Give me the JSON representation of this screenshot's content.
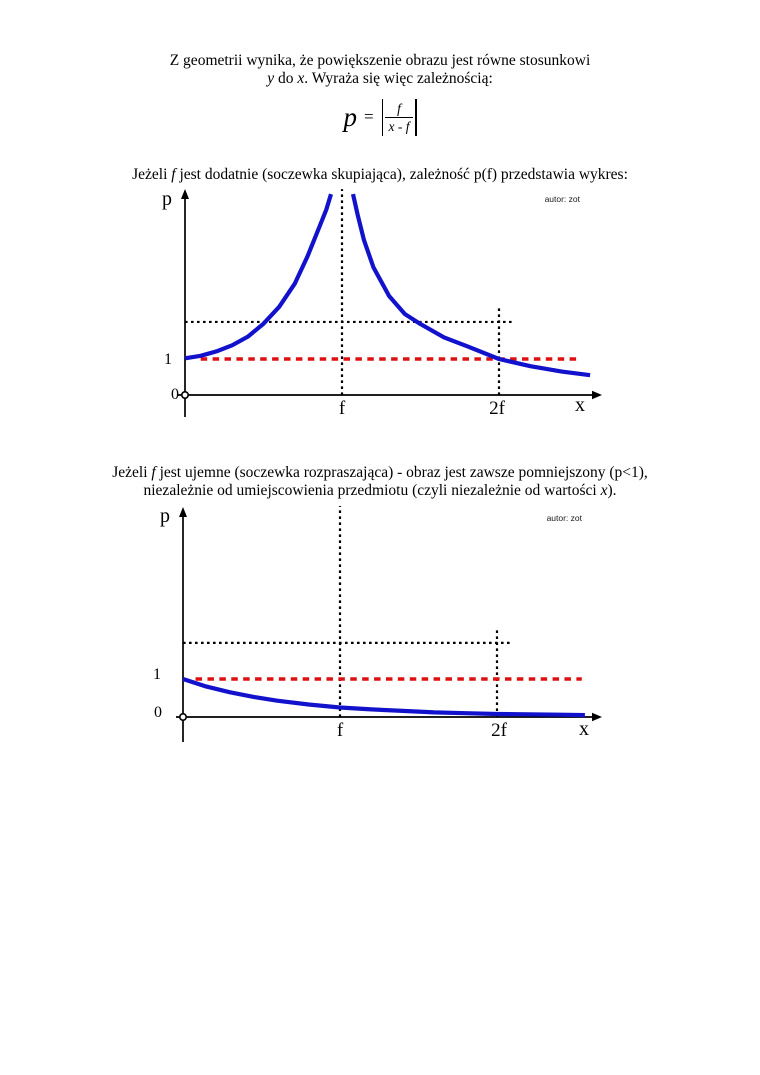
{
  "colors": {
    "curve_blue": "#1212cc",
    "reference_red": "#dd1111",
    "axis_black": "#000000",
    "background": "#ffffff"
  },
  "intro": {
    "line1": "Z geometrii wynika, że powiększenie obrazu jest równe stosunkowi",
    "line2": {
      "em1": "y",
      "mid1": " do ",
      "em2": "x",
      "rest": ". Wyraża się więc zależnością:"
    }
  },
  "formula": {
    "lhs": "p",
    "eq": "=",
    "numerator": "f",
    "denominator": "x - f"
  },
  "section1": {
    "heading": {
      "pre": "Jeżeli ",
      "em": "f",
      "post": " jest dodatnie (soczewka skupiająca), zależność p(f) przedstawia wykres:"
    },
    "credit": "autor: zot"
  },
  "section2": {
    "heading_line1": {
      "pre": "Jeżeli ",
      "em": "f",
      "post": " jest ujemne (soczewka rozpraszająca) - obraz jest zawsze pomniejszony (p<1),"
    },
    "heading_line2": {
      "pre": "niezależnie od umiejscowienia przedmiotu (czyli niezależnie od wartości ",
      "em": "x",
      "post": ")."
    },
    "credit": "autor: zot"
  },
  "chart_data": [
    {
      "type": "line",
      "xlabel": "x",
      "ylabel": "p",
      "origin_label": "0",
      "x_ticks": [
        {
          "value": 1,
          "label": "f"
        },
        {
          "value": 2,
          "label": "2f"
        }
      ],
      "y_ticks": [
        {
          "value": 1,
          "label": "1"
        }
      ],
      "xlim": [
        0,
        2.65
      ],
      "ylim": [
        0,
        5.72
      ],
      "x_unit": "wielokrotność f",
      "grid": false,
      "asymptote_x": 1,
      "guides": [
        {
          "kind": "vline",
          "x": 1,
          "p_from": 0,
          "p_to": 5.72,
          "style": "dotted-black"
        },
        {
          "kind": "vline",
          "x": 2,
          "p_from": 0,
          "p_to": 2.42,
          "style": "dotted-black"
        },
        {
          "kind": "hline",
          "p": 2.03,
          "x_from": 0,
          "x_to": 2.1,
          "style": "dotted-black"
        },
        {
          "kind": "hline",
          "p": 1.0,
          "x_from": 0.1,
          "x_to": 2.52,
          "style": "dashed-red"
        }
      ],
      "series": [
        {
          "name": "p = f/(f-x), 0 <= x < f",
          "points": [
            [
              0,
              1.02
            ],
            [
              0.1,
              1.09
            ],
            [
              0.2,
              1.21
            ],
            [
              0.3,
              1.38
            ],
            [
              0.4,
              1.62
            ],
            [
              0.5,
              1.98
            ],
            [
              0.6,
              2.45
            ],
            [
              0.7,
              3.1
            ],
            [
              0.78,
              3.85
            ],
            [
              0.85,
              4.6
            ],
            [
              0.9,
              5.15
            ],
            [
              0.93,
              5.58
            ]
          ]
        },
        {
          "name": "p = f/(x-f), x > f",
          "points": [
            [
              1.07,
              5.58
            ],
            [
              1.1,
              5.0
            ],
            [
              1.14,
              4.3
            ],
            [
              1.2,
              3.55
            ],
            [
              1.3,
              2.75
            ],
            [
              1.4,
              2.25
            ],
            [
              1.5,
              1.97
            ],
            [
              1.65,
              1.6
            ],
            [
              1.8,
              1.35
            ],
            [
              2.0,
              1.0
            ],
            [
              2.2,
              0.8
            ],
            [
              2.4,
              0.65
            ],
            [
              2.58,
              0.55
            ]
          ]
        }
      ]
    },
    {
      "type": "line",
      "xlabel": "x",
      "ylabel": "p",
      "origin_label": "0",
      "x_ticks": [
        {
          "value": 1,
          "label": "f"
        },
        {
          "value": 2,
          "label": "2f"
        }
      ],
      "y_ticks": [
        {
          "value": 1,
          "label": "1"
        }
      ],
      "xlim": [
        0,
        2.65
      ],
      "ylim": [
        0,
        5.55
      ],
      "x_unit": "wielokrotność |f|",
      "grid": false,
      "guides": [
        {
          "kind": "vline",
          "x": 1,
          "p_from": 0,
          "p_to": 5.55,
          "style": "dotted-black"
        },
        {
          "kind": "vline",
          "x": 2,
          "p_from": 0,
          "p_to": 2.37,
          "style": "dotted-black"
        },
        {
          "kind": "hline",
          "p": 1.95,
          "x_from": 0,
          "x_to": 2.1,
          "style": "dotted-black"
        },
        {
          "kind": "hline",
          "p": 1.0,
          "x_from": 0.08,
          "x_to": 2.54,
          "style": "dashed-red"
        }
      ],
      "series": [
        {
          "name": "p(x) dla f ujemnego, p < 1 dla każdego x",
          "points": [
            [
              0,
              1.0
            ],
            [
              0.15,
              0.8
            ],
            [
              0.3,
              0.65
            ],
            [
              0.45,
              0.53
            ],
            [
              0.6,
              0.43
            ],
            [
              0.8,
              0.33
            ],
            [
              1.0,
              0.25
            ],
            [
              1.2,
              0.2
            ],
            [
              1.4,
              0.16
            ],
            [
              1.6,
              0.12
            ],
            [
              1.8,
              0.1
            ],
            [
              2.0,
              0.08
            ],
            [
              2.2,
              0.07
            ],
            [
              2.4,
              0.06
            ],
            [
              2.56,
              0.05
            ]
          ]
        }
      ]
    }
  ]
}
